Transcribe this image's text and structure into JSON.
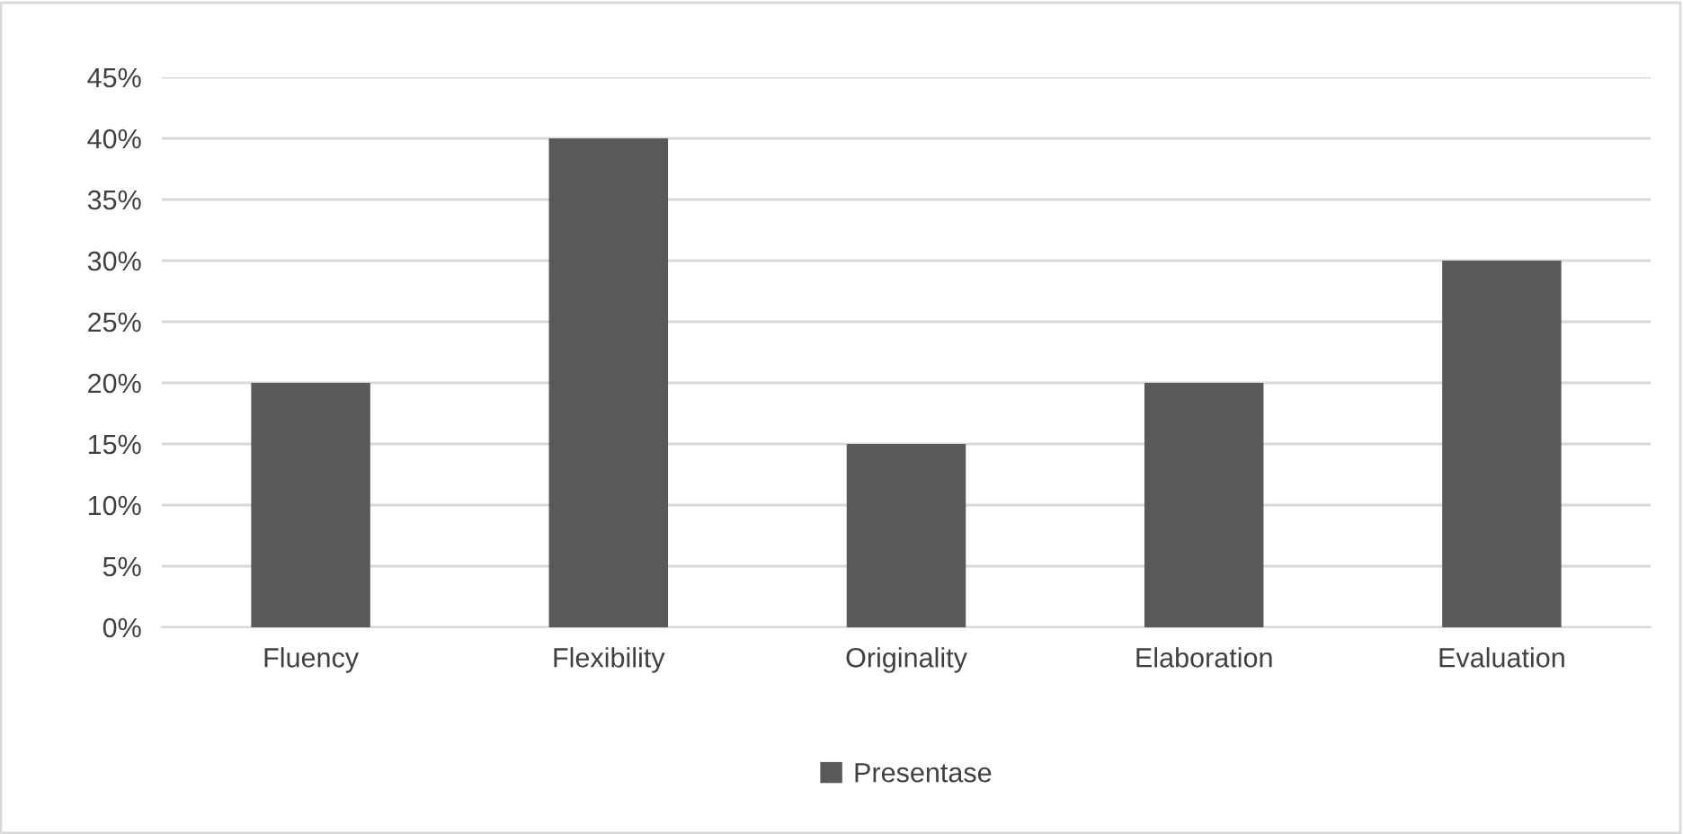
{
  "chart_data": {
    "type": "bar",
    "categories": [
      "Fluency",
      "Flexibility",
      "Originality",
      "Elaboration",
      "Evaluation"
    ],
    "series": [
      {
        "name": "Presentase",
        "color": "#595959",
        "values": [
          20,
          40,
          15,
          20,
          30
        ]
      }
    ],
    "ylim": [
      0,
      45
    ],
    "yticks": [
      {
        "value": 0,
        "label": "0%"
      },
      {
        "value": 5,
        "label": "5%"
      },
      {
        "value": 10,
        "label": "10%"
      },
      {
        "value": 15,
        "label": "15%"
      },
      {
        "value": 20,
        "label": "20%"
      },
      {
        "value": 25,
        "label": "25%"
      },
      {
        "value": 30,
        "label": "30%"
      },
      {
        "value": 35,
        "label": "35%"
      },
      {
        "value": 40,
        "label": "40%"
      },
      {
        "value": 45,
        "label": "45%"
      }
    ],
    "grid": "y",
    "legend": "bottom"
  }
}
